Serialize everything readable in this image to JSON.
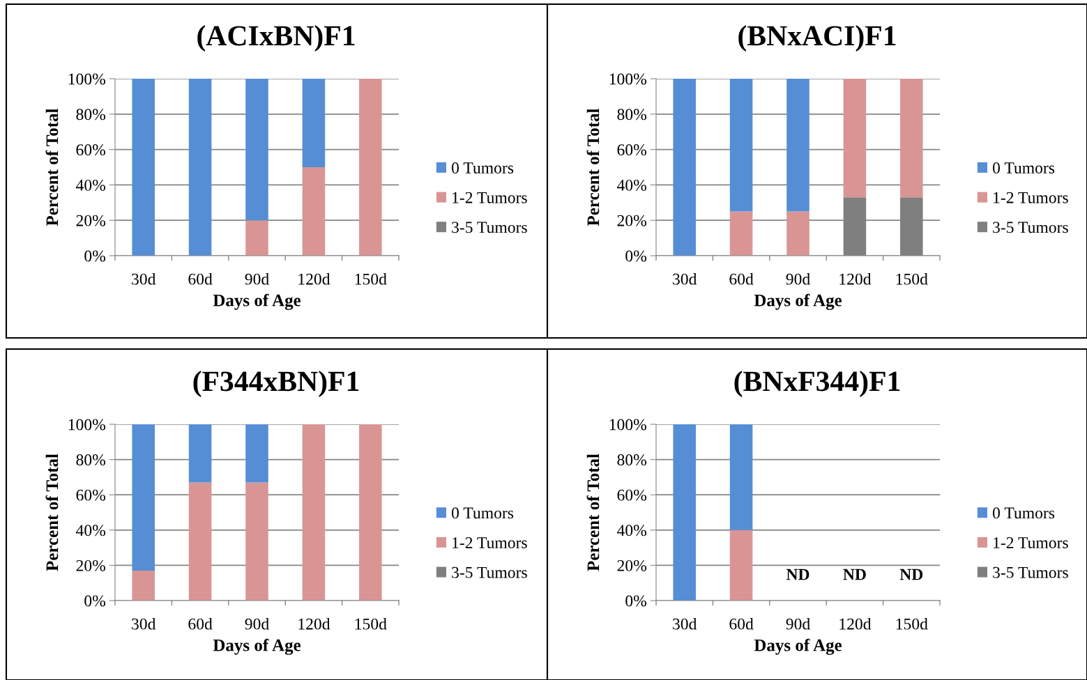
{
  "chart_data": [
    {
      "type": "bar",
      "title": "(ACIxBN)F1",
      "xlabel": "Days of Age",
      "ylabel": "Percent of Total",
      "stacked": true,
      "categories": [
        "30d",
        "60d",
        "90d",
        "120d",
        "150d"
      ],
      "ylim": [
        0,
        100
      ],
      "yticks": [
        {
          "value": 0,
          "label": "0%"
        },
        {
          "value": 20,
          "label": "20%"
        },
        {
          "value": 40,
          "label": "40%"
        },
        {
          "value": 60,
          "label": "60%"
        },
        {
          "value": 80,
          "label": "80%"
        },
        {
          "value": 100,
          "label": "100%"
        }
      ],
      "grid": "y",
      "legend": "right",
      "series": [
        {
          "name": "3-5 Tumors",
          "color": "#7f7f7f",
          "values": [
            0,
            0,
            0,
            0,
            0
          ]
        },
        {
          "name": "1-2 Tumors",
          "color": "#d99594",
          "values": [
            0,
            0,
            20,
            50,
            100
          ]
        },
        {
          "name": "0 Tumors",
          "color": "#558ed5",
          "values": [
            100,
            100,
            80,
            50,
            0
          ]
        }
      ]
    },
    {
      "type": "bar",
      "title": "(BNxACI)F1",
      "xlabel": "Days of Age",
      "ylabel": "Percent of Total",
      "stacked": true,
      "categories": [
        "30d",
        "60d",
        "90d",
        "120d",
        "150d"
      ],
      "ylim": [
        0,
        100
      ],
      "yticks": [
        {
          "value": 0,
          "label": "0%"
        },
        {
          "value": 20,
          "label": "20%"
        },
        {
          "value": 40,
          "label": "40%"
        },
        {
          "value": 60,
          "label": "60%"
        },
        {
          "value": 80,
          "label": "80%"
        },
        {
          "value": 100,
          "label": "100%"
        }
      ],
      "grid": "y",
      "legend": "right",
      "series": [
        {
          "name": "3-5 Tumors",
          "color": "#7f7f7f",
          "values": [
            0,
            0,
            0,
            33,
            33
          ]
        },
        {
          "name": "1-2 Tumors",
          "color": "#d99594",
          "values": [
            0,
            25,
            25,
            67,
            67
          ]
        },
        {
          "name": "0 Tumors",
          "color": "#558ed5",
          "values": [
            100,
            75,
            75,
            0,
            0
          ]
        }
      ]
    },
    {
      "type": "bar",
      "title": "(F344xBN)F1",
      "xlabel": "Days of Age",
      "ylabel": "Percent of Total",
      "stacked": true,
      "categories": [
        "30d",
        "60d",
        "90d",
        "120d",
        "150d"
      ],
      "ylim": [
        0,
        100
      ],
      "yticks": [
        {
          "value": 0,
          "label": "0%"
        },
        {
          "value": 20,
          "label": "20%"
        },
        {
          "value": 40,
          "label": "40%"
        },
        {
          "value": 60,
          "label": "60%"
        },
        {
          "value": 80,
          "label": "80%"
        },
        {
          "value": 100,
          "label": "100%"
        }
      ],
      "grid": "y",
      "legend": "right",
      "series": [
        {
          "name": "3-5 Tumors",
          "color": "#7f7f7f",
          "values": [
            0,
            0,
            0,
            0,
            0
          ]
        },
        {
          "name": "1-2 Tumors",
          "color": "#d99594",
          "values": [
            17,
            67,
            67,
            100,
            100
          ]
        },
        {
          "name": "0 Tumors",
          "color": "#558ed5",
          "values": [
            83,
            33,
            33,
            0,
            0
          ]
        }
      ]
    },
    {
      "type": "bar",
      "title": "(BNxF344)F1",
      "xlabel": "Days of Age",
      "ylabel": "Percent of Total",
      "stacked": true,
      "categories": [
        "30d",
        "60d",
        "90d",
        "120d",
        "150d"
      ],
      "ylim": [
        0,
        100
      ],
      "yticks": [
        {
          "value": 0,
          "label": "0%"
        },
        {
          "value": 20,
          "label": "20%"
        },
        {
          "value": 40,
          "label": "40%"
        },
        {
          "value": 60,
          "label": "60%"
        },
        {
          "value": 80,
          "label": "80%"
        },
        {
          "value": 100,
          "label": "100%"
        }
      ],
      "grid": "y",
      "legend": "right",
      "annotations": [
        "ND",
        "ND",
        "ND"
      ],
      "series": [
        {
          "name": "3-5 Tumors",
          "color": "#7f7f7f",
          "values": [
            0,
            0,
            null,
            null,
            null
          ]
        },
        {
          "name": "1-2 Tumors",
          "color": "#d99594",
          "values": [
            0,
            40,
            null,
            null,
            null
          ]
        },
        {
          "name": "0 Tumors",
          "color": "#558ed5",
          "values": [
            100,
            60,
            null,
            null,
            null
          ]
        }
      ]
    }
  ]
}
